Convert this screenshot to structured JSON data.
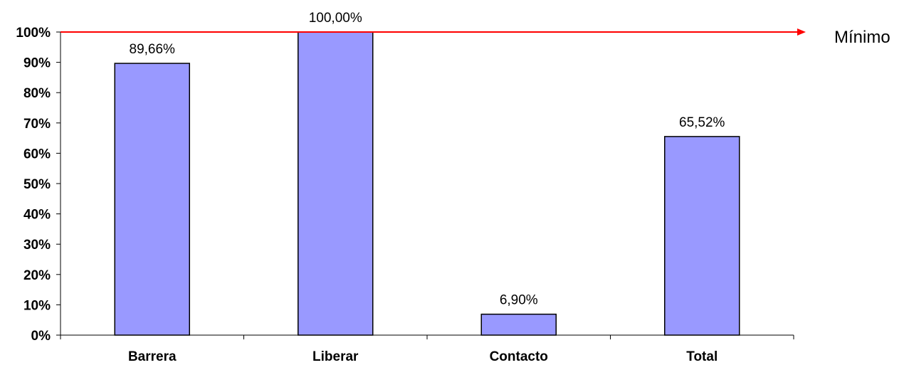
{
  "chart_data": {
    "type": "bar",
    "categories": [
      "Barrera",
      "Liberar",
      "Contacto",
      "Total"
    ],
    "values": [
      89.66,
      100.0,
      6.9,
      65.52
    ],
    "data_labels": [
      "89,66%",
      "100,00%",
      "6,90%",
      "65,52%"
    ],
    "ylim": [
      0,
      100
    ],
    "y_ticks": [
      0,
      10,
      20,
      30,
      40,
      50,
      60,
      70,
      80,
      90,
      100
    ],
    "y_tick_labels": [
      "0%",
      "10%",
      "20%",
      "30%",
      "40%",
      "50%",
      "60%",
      "70%",
      "80%",
      "90%",
      "100%"
    ],
    "grid": false,
    "bar_color": "#9999ff",
    "bar_edge_color": "#000000",
    "reference_line": {
      "value": 100,
      "label": "Mínimo",
      "color": "#ff0000"
    }
  }
}
